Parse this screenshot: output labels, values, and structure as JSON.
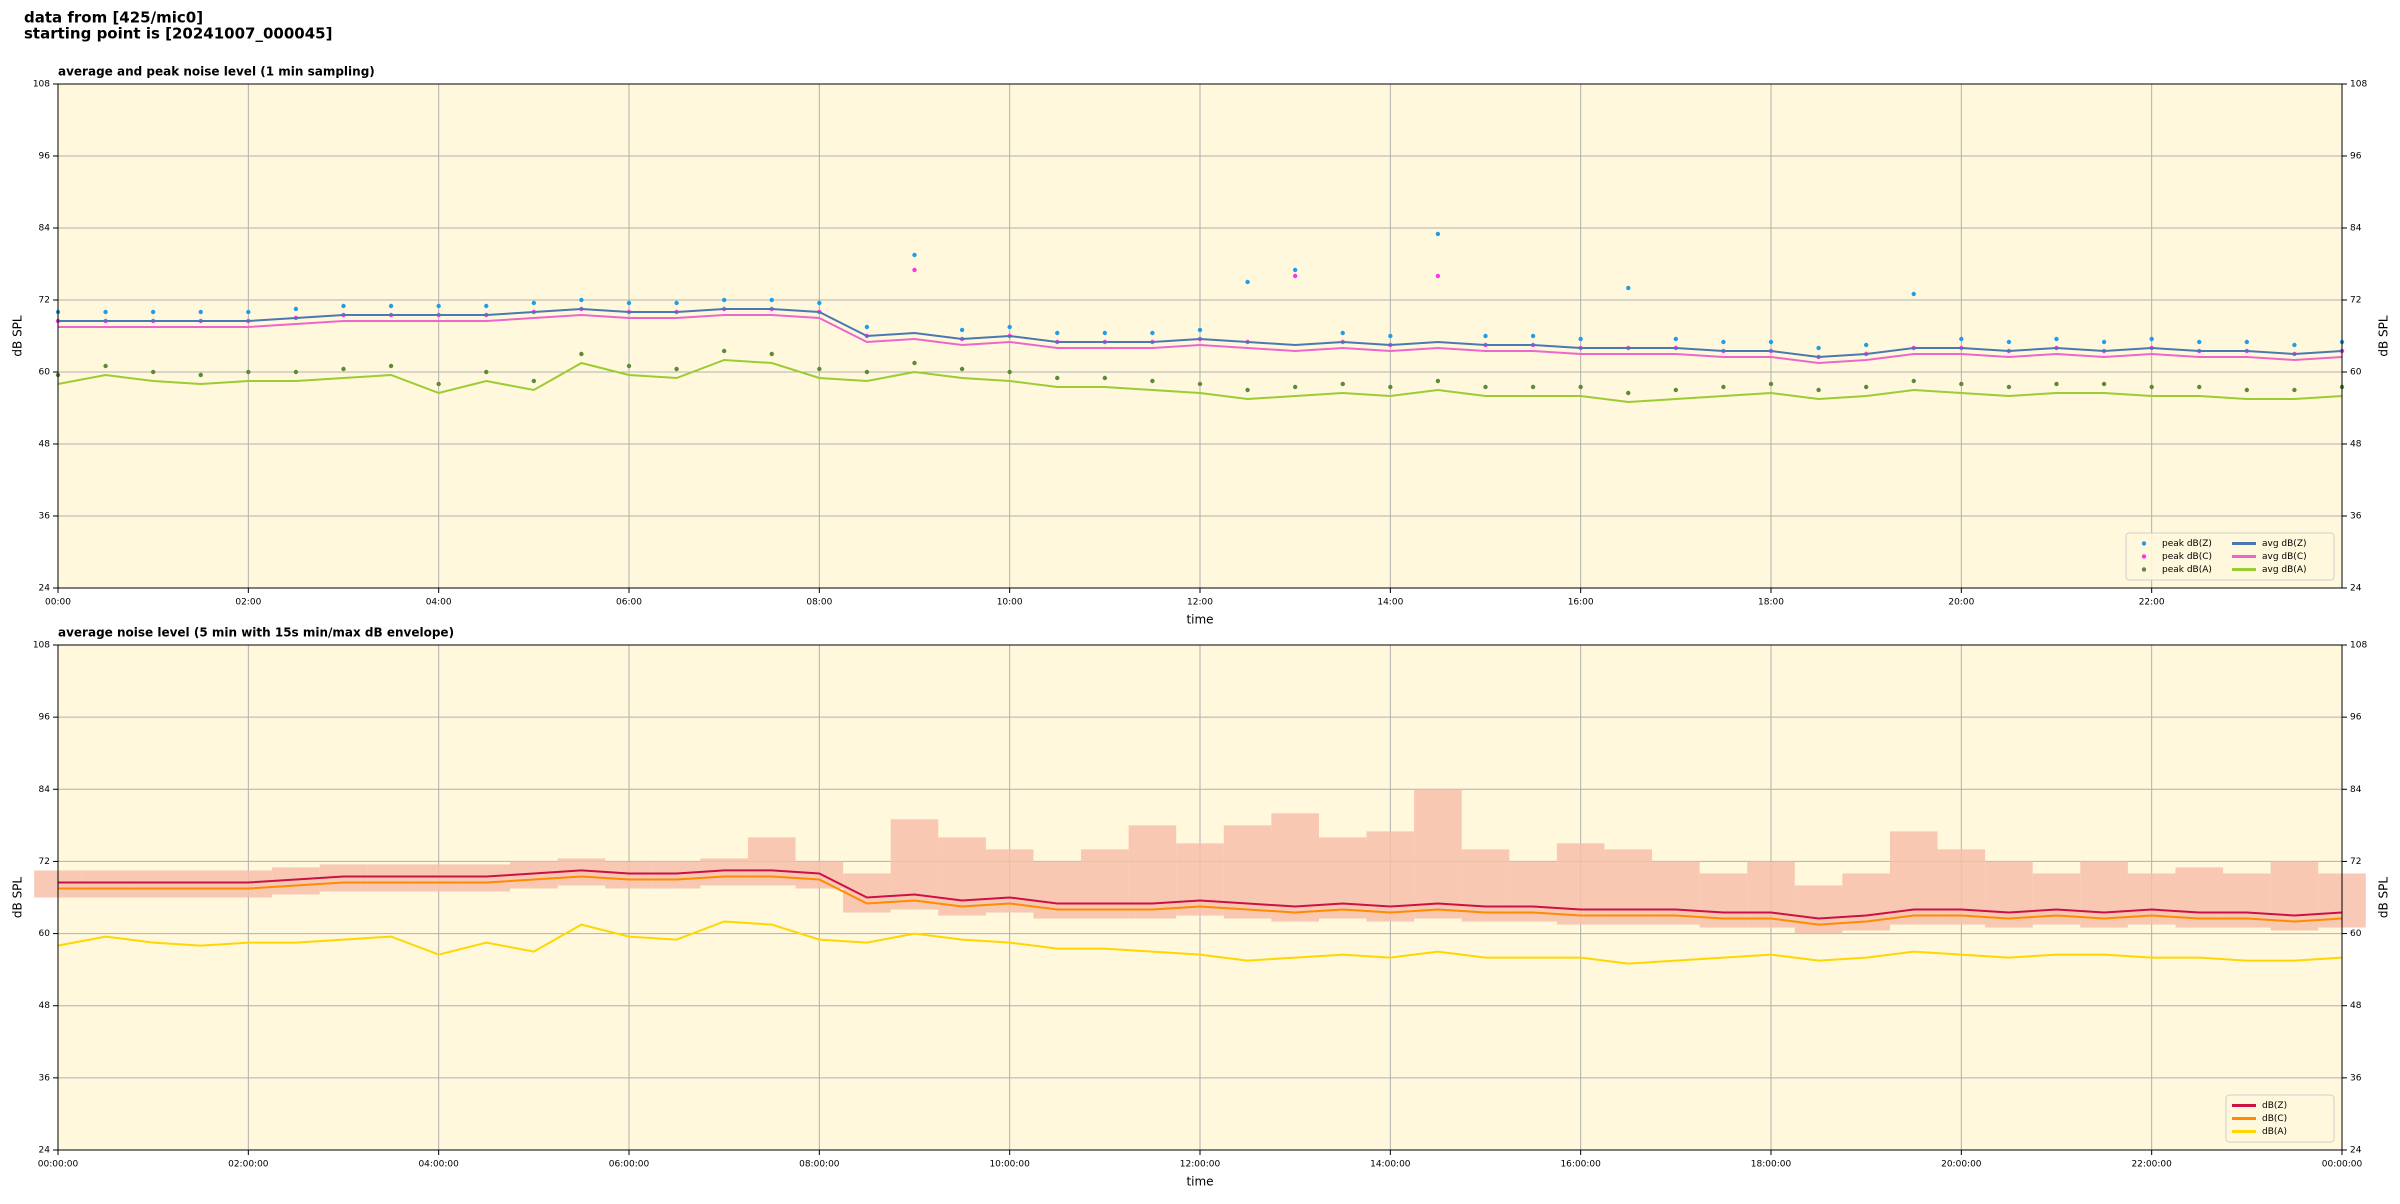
{
  "header": {
    "lines": [
      "data from [425/mic0]",
      "starting point is [20241007_000045]"
    ]
  },
  "chart_data": [
    {
      "type": "line",
      "title": "average and peak noise level (1 min sampling)",
      "xlabel": "time",
      "ylabel": "dB SPL",
      "background": "#fff8dc",
      "grid": true,
      "legend": "lower right",
      "legend_columns": 2,
      "xlim": [
        0,
        24
      ],
      "xticks": [
        {
          "value": 0,
          "label": "00:00"
        },
        {
          "value": 2,
          "label": "02:00"
        },
        {
          "value": 4,
          "label": "04:00"
        },
        {
          "value": 6,
          "label": "06:00"
        },
        {
          "value": 8,
          "label": "08:00"
        },
        {
          "value": 10,
          "label": "10:00"
        },
        {
          "value": 12,
          "label": "12:00"
        },
        {
          "value": 14,
          "label": "14:00"
        },
        {
          "value": 16,
          "label": "16:00"
        },
        {
          "value": 18,
          "label": "18:00"
        },
        {
          "value": 20,
          "label": "20:00"
        },
        {
          "value": 22,
          "label": "22:00"
        }
      ],
      "ylim": [
        24,
        108
      ],
      "yticks": [
        24,
        36,
        48,
        60,
        72,
        84,
        96,
        108
      ],
      "x": [
        0,
        0.5,
        1,
        1.5,
        2,
        2.5,
        3,
        3.5,
        4,
        4.5,
        5,
        5.5,
        6,
        6.5,
        7,
        7.5,
        8,
        8.5,
        9,
        9.5,
        10,
        10.5,
        11,
        11.5,
        12,
        12.5,
        13,
        13.5,
        14,
        14.5,
        15,
        15.5,
        16,
        16.5,
        17,
        17.5,
        18,
        18.5,
        19,
        19.5,
        20,
        20.5,
        21,
        21.5,
        22,
        22.5,
        23,
        23.5,
        24
      ],
      "series": [
        {
          "name": "peak dB(Z)",
          "kind": "scatter",
          "color": "#1f9ee8",
          "values": [
            70,
            70,
            70,
            70,
            70,
            70.5,
            71,
            71,
            71,
            71,
            71.5,
            72,
            71.5,
            71.5,
            72,
            72,
            71.5,
            67.5,
            79.5,
            67,
            67.5,
            66.5,
            66.5,
            66.5,
            67,
            75,
            77,
            66.5,
            66,
            83,
            66,
            66,
            65.5,
            74,
            65.5,
            65,
            65,
            64,
            64.5,
            73,
            65.5,
            65,
            65.5,
            65,
            65.5,
            65,
            65,
            64.5,
            65
          ]
        },
        {
          "name": "peak dB(C)",
          "kind": "scatter",
          "color": "#ff33ee",
          "values": [
            68.5,
            68.5,
            68.5,
            68.5,
            68.5,
            69,
            69.5,
            69.5,
            69.5,
            69.5,
            70,
            70.5,
            70,
            70,
            70.5,
            70.5,
            70,
            66,
            77,
            65.5,
            66,
            65,
            65,
            65,
            65.5,
            65,
            76,
            65,
            64.5,
            76,
            64.5,
            64.5,
            64,
            64,
            64,
            63.5,
            63.5,
            62.5,
            63,
            64,
            64,
            63.5,
            64,
            63.5,
            64,
            63.5,
            63.5,
            63,
            63.5
          ]
        },
        {
          "name": "peak dB(A)",
          "kind": "scatter",
          "color": "#5a8a3a",
          "values": [
            59.5,
            61,
            60,
            59.5,
            60,
            60,
            60.5,
            61,
            58,
            60,
            58.5,
            63,
            61,
            60.5,
            63.5,
            63,
            60.5,
            60,
            61.5,
            60.5,
            60,
            59,
            59,
            58.5,
            58,
            57,
            57.5,
            58,
            57.5,
            58.5,
            57.5,
            57.5,
            57.5,
            56.5,
            57,
            57.5,
            58,
            57,
            57.5,
            58.5,
            58,
            57.5,
            58,
            58,
            57.5,
            57.5,
            57,
            57,
            57.5
          ]
        },
        {
          "name": "avg dB(Z)",
          "kind": "line",
          "color": "#4a78b0",
          "values": [
            68.5,
            68.5,
            68.5,
            68.5,
            68.5,
            69,
            69.5,
            69.5,
            69.5,
            69.5,
            70,
            70.5,
            70,
            70,
            70.5,
            70.5,
            70,
            66,
            66.5,
            65.5,
            66,
            65,
            65,
            65,
            65.5,
            65,
            64.5,
            65,
            64.5,
            65,
            64.5,
            64.5,
            64,
            64,
            64,
            63.5,
            63.5,
            62.5,
            63,
            64,
            64,
            63.5,
            64,
            63.5,
            64,
            63.5,
            63.5,
            63,
            63.5
          ]
        },
        {
          "name": "avg dB(C)",
          "kind": "line",
          "color": "#ee66cc",
          "values": [
            67.5,
            67.5,
            67.5,
            67.5,
            67.5,
            68,
            68.5,
            68.5,
            68.5,
            68.5,
            69,
            69.5,
            69,
            69,
            69.5,
            69.5,
            69,
            65,
            65.5,
            64.5,
            65,
            64,
            64,
            64,
            64.5,
            64,
            63.5,
            64,
            63.5,
            64,
            63.5,
            63.5,
            63,
            63,
            63,
            62.5,
            62.5,
            61.5,
            62,
            63,
            63,
            62.5,
            63,
            62.5,
            63,
            62.5,
            62.5,
            62,
            62.5
          ]
        },
        {
          "name": "avg dB(A)",
          "kind": "line",
          "color": "#9acd32",
          "values": [
            58,
            59.5,
            58.5,
            58,
            58.5,
            58.5,
            59,
            59.5,
            56.5,
            58.5,
            57,
            61.5,
            59.5,
            59,
            62,
            61.5,
            59,
            58.5,
            60,
            59,
            58.5,
            57.5,
            57.5,
            57,
            56.5,
            55.5,
            56,
            56.5,
            56,
            57,
            56,
            56,
            56,
            55,
            55.5,
            56,
            56.5,
            55.5,
            56,
            57,
            56.5,
            56,
            56.5,
            56.5,
            56,
            56,
            55.5,
            55.5,
            56
          ]
        }
      ]
    },
    {
      "type": "line",
      "title": "average noise level (5 min with 15s min/max dB envelope)",
      "xlabel": "time",
      "ylabel": "dB SPL",
      "background": "#fff8dc",
      "grid": true,
      "legend": "lower right",
      "legend_columns": 1,
      "xlim": [
        0,
        24
      ],
      "xticks": [
        {
          "value": 0,
          "label": "00:00:00"
        },
        {
          "value": 2,
          "label": "02:00:00"
        },
        {
          "value": 4,
          "label": "04:00:00"
        },
        {
          "value": 6,
          "label": "06:00:00"
        },
        {
          "value": 8,
          "label": "08:00:00"
        },
        {
          "value": 10,
          "label": "10:00:00"
        },
        {
          "value": 12,
          "label": "12:00:00"
        },
        {
          "value": 14,
          "label": "14:00:00"
        },
        {
          "value": 16,
          "label": "16:00:00"
        },
        {
          "value": 18,
          "label": "18:00:00"
        },
        {
          "value": 20,
          "label": "20:00:00"
        },
        {
          "value": 22,
          "label": "22:00:00"
        },
        {
          "value": 24,
          "label": "00:00:00"
        }
      ],
      "ylim": [
        24,
        108
      ],
      "yticks": [
        24,
        36,
        48,
        60,
        72,
        84,
        96,
        108
      ],
      "x": [
        0,
        0.5,
        1,
        1.5,
        2,
        2.5,
        3,
        3.5,
        4,
        4.5,
        5,
        5.5,
        6,
        6.5,
        7,
        7.5,
        8,
        8.5,
        9,
        9.5,
        10,
        10.5,
        11,
        11.5,
        12,
        12.5,
        13,
        13.5,
        14,
        14.5,
        15,
        15.5,
        16,
        16.5,
        17,
        17.5,
        18,
        18.5,
        19,
        19.5,
        20,
        20.5,
        21,
        21.5,
        22,
        22.5,
        23,
        23.5,
        24
      ],
      "envelope": {
        "color": "#f7c0aa",
        "upper": [
          70.5,
          70.5,
          70.5,
          70.5,
          70.5,
          71,
          71.5,
          71.5,
          71.5,
          71.5,
          72,
          72.5,
          72,
          72,
          72.5,
          76,
          72,
          70,
          79,
          76,
          74,
          72,
          74,
          78,
          75,
          78,
          80,
          76,
          77,
          84,
          74,
          72,
          75,
          74,
          72,
          70,
          72,
          68,
          70,
          77,
          74,
          72,
          70,
          72,
          70,
          71,
          70,
          72,
          70
        ],
        "lower": [
          66,
          66,
          66,
          66,
          66,
          66.5,
          67,
          67,
          67,
          67,
          67.5,
          68,
          67.5,
          67.5,
          68,
          68,
          67.5,
          63.5,
          64,
          63,
          63.5,
          62.5,
          62.5,
          62.5,
          63,
          62.5,
          62,
          62.5,
          62,
          62.5,
          62,
          62,
          61.5,
          61.5,
          61.5,
          61,
          61,
          60,
          60.5,
          61.5,
          61.5,
          61,
          61.5,
          61,
          61.5,
          61,
          61,
          60.5,
          61
        ]
      },
      "series": [
        {
          "name": "dB(Z)",
          "kind": "line",
          "color": "#cc1144",
          "values": [
            68.5,
            68.5,
            68.5,
            68.5,
            68.5,
            69,
            69.5,
            69.5,
            69.5,
            69.5,
            70,
            70.5,
            70,
            70,
            70.5,
            70.5,
            70,
            66,
            66.5,
            65.5,
            66,
            65,
            65,
            65,
            65.5,
            65,
            64.5,
            65,
            64.5,
            65,
            64.5,
            64.5,
            64,
            64,
            64,
            63.5,
            63.5,
            62.5,
            63,
            64,
            64,
            63.5,
            64,
            63.5,
            64,
            63.5,
            63.5,
            63,
            63.5
          ]
        },
        {
          "name": "dB(C)",
          "kind": "line",
          "color": "#ff8c00",
          "values": [
            67.5,
            67.5,
            67.5,
            67.5,
            67.5,
            68,
            68.5,
            68.5,
            68.5,
            68.5,
            69,
            69.5,
            69,
            69,
            69.5,
            69.5,
            69,
            65,
            65.5,
            64.5,
            65,
            64,
            64,
            64,
            64.5,
            64,
            63.5,
            64,
            63.5,
            64,
            63.5,
            63.5,
            63,
            63,
            63,
            62.5,
            62.5,
            61.5,
            62,
            63,
            63,
            62.5,
            63,
            62.5,
            63,
            62.5,
            62.5,
            62,
            62.5
          ]
        },
        {
          "name": "dB(A)",
          "kind": "line",
          "color": "#ffd700",
          "values": [
            58,
            59.5,
            58.5,
            58,
            58.5,
            58.5,
            59,
            59.5,
            56.5,
            58.5,
            57,
            61.5,
            59.5,
            59,
            62,
            61.5,
            59,
            58.5,
            60,
            59,
            58.5,
            57.5,
            57.5,
            57,
            56.5,
            55.5,
            56,
            56.5,
            56,
            57,
            56,
            56,
            56,
            55,
            55.5,
            56,
            56.5,
            55.5,
            56,
            57,
            56.5,
            56,
            56.5,
            56.5,
            56,
            56,
            55.5,
            55.5,
            56
          ]
        }
      ]
    }
  ]
}
